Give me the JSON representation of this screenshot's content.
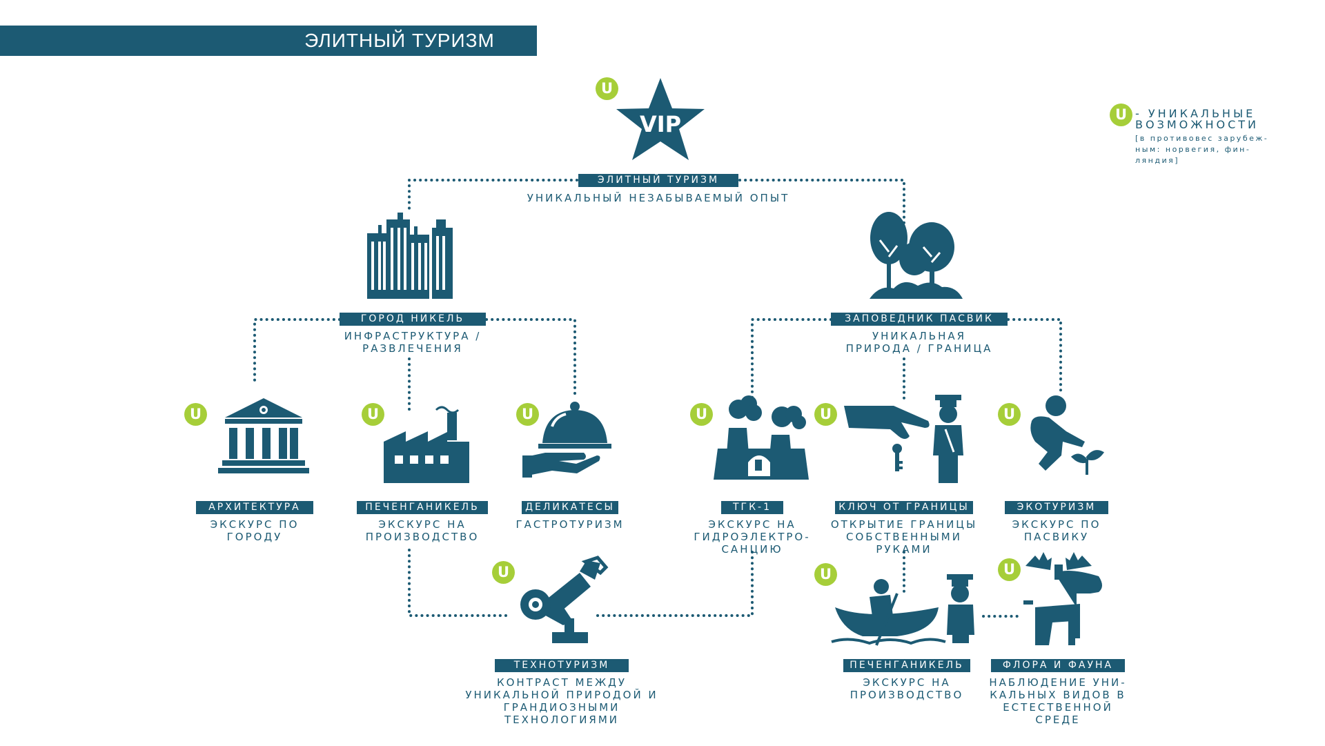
{
  "header": {
    "title": "ЭЛИТНЫЙ ТУРИЗМ"
  },
  "legend": {
    "badge": "U",
    "text": "- УНИКАЛЬНЫЕ\nВОЗМОЖНОСТИ",
    "note": "[в противовес зарубеж-\nным: норвегия, фин-\nляндия]"
  },
  "root": {
    "label": "ЭЛИТНЫЙ ТУРИЗМ",
    "desc": "УНИКАЛЬНЫЙ НЕЗАБЫВАЕМЫЙ ОПЫТ",
    "star_text": "VIP",
    "badge": "U"
  },
  "branches": {
    "city": {
      "label": "ГОРОД НИКЕЛЬ",
      "desc": "ИНФРАСТРУКТУРА /\nРАЗВЛЕЧЕНИЯ"
    },
    "reserve": {
      "label": "ЗАПОВЕДНИК ПАСВИК",
      "desc": "УНИКАЛЬНАЯ\nПРИРОДА / ГРАНИЦА"
    }
  },
  "nodes": {
    "architecture": {
      "label": "АРХИТЕКТУРА",
      "desc": "ЭКСКУРС ПО\nГОРОДУ",
      "badge": "U"
    },
    "pechenga1": {
      "label": "ПЕЧЕНГАНИКЕЛЬ",
      "desc": "ЭКСКУРС НА\nПРОИЗВОДСТВО",
      "badge": "U"
    },
    "delicacies": {
      "label": "ДЕЛИКАТЕСЫ",
      "desc": "ГАСТРОТУРИЗМ",
      "badge": "U"
    },
    "tgk": {
      "label": "ТГК-1",
      "desc": "ЭКСКУРС НА\nГИДРОЭЛЕКТРО-\nСАНЦИЮ",
      "badge": "U"
    },
    "border_key": {
      "label": "КЛЮЧ ОТ ГРАНИЦЫ",
      "desc": "ОТКРЫТИЕ ГРАНИЦЫ\nСОБСТВЕННЫМИ\nРУКАМИ",
      "badge": "U"
    },
    "ecotourism": {
      "label": "ЭКОТУРИЗМ",
      "desc": "ЭКСКУРС ПО\nПАСВИКУ",
      "badge": "U"
    },
    "technotourism": {
      "label": "ТЕХНОТУРИЗМ",
      "desc": "КОНТРАСТ МЕЖДУ\nУНИКАЛЬНОЙ ПРИРОДОЙ И\nГРАНДИОЗНЫМИ\nТЕХНОЛОГИЯМИ",
      "badge": "U"
    },
    "pechenga2": {
      "label": "ПЕЧЕНГАНИКЕЛЬ",
      "desc": "ЭКСКУРС НА\nПРОИЗВОДСТВО",
      "badge": "U"
    },
    "flora": {
      "label": "ФЛОРА И ФАУНА",
      "desc": "НАБЛЮДЕНИЕ УНИ-\nКАЛЬНЫХ ВИДОВ В\nЕСТЕСТВЕННОЙ\nСРЕДЕ",
      "badge": "U"
    }
  },
  "colors": {
    "primary": "#1c5a73",
    "accent": "#a6ce39",
    "background": "#ffffff"
  }
}
